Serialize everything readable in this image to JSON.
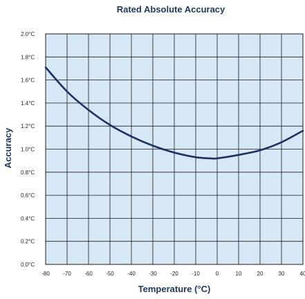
{
  "chart_data": {
    "type": "line",
    "title": "Rated Absolute Accuracy",
    "xlabel": "Temperature (°C)",
    "ylabel": "Accuracy",
    "xlim": [
      -80,
      40
    ],
    "ylim": [
      0,
      2.0
    ],
    "x_ticks": [
      -80,
      -70,
      -60,
      -50,
      -40,
      -30,
      -20,
      -10,
      0,
      10,
      20,
      30,
      40
    ],
    "x_tick_labels": [
      "-80",
      "-70",
      "-60",
      "-50",
      "-40",
      "-30",
      "-20",
      "-10",
      "0",
      "10",
      "20",
      "30",
      "40"
    ],
    "y_ticks": [
      0,
      0.2,
      0.4,
      0.6,
      0.8,
      1.0,
      1.2,
      1.4,
      1.6,
      1.8,
      2.0
    ],
    "y_tick_labels": [
      "0.0°C",
      "0.2°C",
      "0.4°C",
      "0.6°C",
      "0.8°C",
      "1.0°C",
      "1.2°C",
      "1.4°C",
      "1.6°C",
      "1.8°C",
      "2.0°C"
    ],
    "grid": true,
    "series": [
      {
        "x": [
          -80,
          -70,
          -60,
          -50,
          -40,
          -30,
          -20,
          -10,
          -3,
          0,
          10,
          20,
          30,
          40
        ],
        "y": [
          1.71,
          1.5,
          1.34,
          1.21,
          1.11,
          1.03,
          0.97,
          0.93,
          0.92,
          0.92,
          0.95,
          0.99,
          1.06,
          1.16
        ]
      }
    ],
    "colors": {
      "plot_bg": "#d6e7f6",
      "line": "#1f2f63",
      "text": "#1f3763"
    }
  }
}
